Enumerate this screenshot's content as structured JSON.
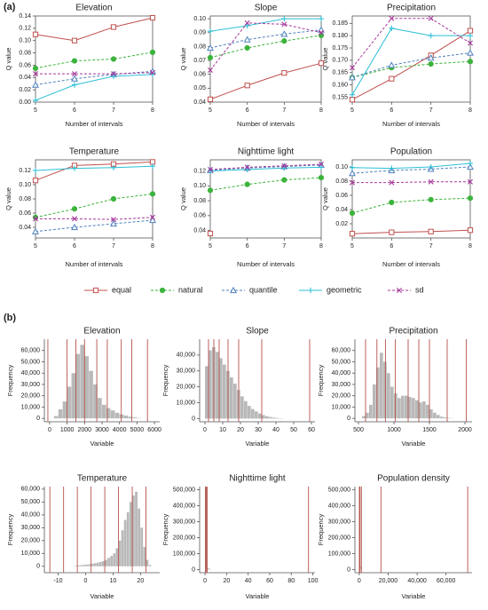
{
  "panels": [
    "(a)",
    "(b)"
  ],
  "chart_data": [
    {
      "type": "line",
      "title": "Elevation",
      "xlabel": "Number of intervals",
      "ylabel": "Q value",
      "x": [
        5,
        6,
        7,
        8
      ],
      "xlim": [
        5,
        8
      ],
      "xticks": [
        5,
        6,
        7,
        8
      ],
      "ylim": [
        0,
        0.14
      ],
      "yticks": [
        {
          "value": 0,
          "label": "0.00"
        },
        0.02,
        0.04,
        0.06,
        0.08,
        {
          "value": 0.1,
          "label": "0.10"
        },
        0.12,
        0.14
      ],
      "series": [
        {
          "name": "equal",
          "color": "#c0504d",
          "marker": "square",
          "dashed": false,
          "values": [
            0.11,
            0.1,
            0.122,
            0.137
          ]
        },
        {
          "name": "natural",
          "color": "#3cb33c",
          "marker": "circle",
          "dashed": true,
          "values": [
            0.055,
            0.067,
            0.07,
            0.081
          ]
        },
        {
          "name": "quantile",
          "color": "#4f81bd",
          "marker": "triangle",
          "dashed": true,
          "values": [
            0.028,
            0.038,
            0.045,
            0.05
          ]
        },
        {
          "name": "geometric",
          "color": "#2fbfd6",
          "marker": "plus",
          "dashed": false,
          "values": [
            0.003,
            0.028,
            0.042,
            0.045
          ]
        },
        {
          "name": "sd",
          "color": "#a8399a",
          "marker": "cross",
          "dashed": true,
          "values": [
            0.046,
            0.046,
            0.046,
            0.048
          ]
        }
      ]
    },
    {
      "type": "line",
      "title": "Slope",
      "xlabel": "Number of intervals",
      "ylabel": "Q value",
      "x": [
        5,
        6,
        7,
        8
      ],
      "xlim": [
        5,
        8
      ],
      "xticks": [
        5,
        6,
        7,
        8
      ],
      "ylim": [
        0.04,
        0.102
      ],
      "yticks": [
        0.04,
        0.05,
        0.06,
        0.07,
        0.08,
        0.09,
        {
          "value": 0.1,
          "label": "0.10"
        }
      ],
      "series": [
        {
          "name": "equal",
          "color": "#c0504d",
          "marker": "square",
          "dashed": false,
          "values": [
            0.042,
            0.052,
            0.061,
            0.068
          ]
        },
        {
          "name": "natural",
          "color": "#3cb33c",
          "marker": "circle",
          "dashed": true,
          "values": [
            0.072,
            0.079,
            0.084,
            0.088
          ]
        },
        {
          "name": "quantile",
          "color": "#4f81bd",
          "marker": "triangle",
          "dashed": true,
          "values": [
            0.079,
            0.085,
            0.089,
            0.092
          ]
        },
        {
          "name": "geometric",
          "color": "#2fbfd6",
          "marker": "plus",
          "dashed": false,
          "values": [
            0.091,
            0.095,
            0.1,
            0.1
          ]
        },
        {
          "name": "sd",
          "color": "#a8399a",
          "marker": "cross",
          "dashed": true,
          "values": [
            0.063,
            0.097,
            0.096,
            0.09
          ]
        }
      ]
    },
    {
      "type": "line",
      "title": "Precipitation",
      "xlabel": "Number of intervals",
      "ylabel": "Q value",
      "x": [
        5,
        6,
        7,
        8
      ],
      "xlim": [
        5,
        8
      ],
      "xticks": [
        5,
        6,
        7,
        8
      ],
      "ylim": [
        0.153,
        0.188
      ],
      "yticks": [
        0.155,
        {
          "value": 0.16,
          "label": "0.160"
        },
        0.165,
        {
          "value": 0.17,
          "label": "0.170"
        },
        0.175,
        {
          "value": 0.18,
          "label": "0.180"
        },
        0.185
      ],
      "series": [
        {
          "name": "equal",
          "color": "#c0504d",
          "marker": "square",
          "dashed": false,
          "values": [
            0.154,
            0.1625,
            0.172,
            0.182
          ]
        },
        {
          "name": "natural",
          "color": "#3cb33c",
          "marker": "circle",
          "dashed": true,
          "values": [
            0.163,
            0.167,
            0.1685,
            0.1695
          ]
        },
        {
          "name": "quantile",
          "color": "#4f81bd",
          "marker": "triangle",
          "dashed": true,
          "values": [
            0.163,
            0.168,
            0.171,
            0.173
          ]
        },
        {
          "name": "geometric",
          "color": "#2fbfd6",
          "marker": "plus",
          "dashed": false,
          "values": [
            0.156,
            0.183,
            0.18,
            0.18
          ]
        },
        {
          "name": "sd",
          "color": "#a8399a",
          "marker": "cross",
          "dashed": true,
          "values": [
            0.167,
            0.187,
            0.187,
            0.177
          ]
        }
      ]
    },
    {
      "type": "line",
      "title": "Temperature",
      "xlabel": "Number of intervals",
      "ylabel": "Q value",
      "x": [
        5,
        6,
        7,
        8
      ],
      "xlim": [
        5,
        8
      ],
      "xticks": [
        5,
        6,
        7,
        8
      ],
      "ylim": [
        0.025,
        0.135
      ],
      "yticks": [
        0.04,
        0.06,
        0.08,
        {
          "value": 0.1,
          "label": "0.10"
        },
        0.12
      ],
      "series": [
        {
          "name": "equal",
          "color": "#c0504d",
          "marker": "square",
          "dashed": false,
          "values": [
            0.106,
            0.127,
            0.129,
            0.132
          ]
        },
        {
          "name": "natural",
          "color": "#3cb33c",
          "marker": "circle",
          "dashed": true,
          "values": [
            0.054,
            0.066,
            0.08,
            0.087
          ]
        },
        {
          "name": "quantile",
          "color": "#4f81bd",
          "marker": "triangle",
          "dashed": true,
          "values": [
            0.034,
            0.04,
            0.045,
            0.05
          ]
        },
        {
          "name": "geometric",
          "color": "#2fbfd6",
          "marker": "plus",
          "dashed": false,
          "values": [
            0.12,
            0.123,
            0.124,
            0.126
          ]
        },
        {
          "name": "sd",
          "color": "#a8399a",
          "marker": "cross",
          "dashed": true,
          "values": [
            0.052,
            0.052,
            0.051,
            0.054
          ]
        }
      ]
    },
    {
      "type": "line",
      "title": "Nighttime light",
      "xlabel": "Number of intervals",
      "ylabel": "Q value",
      "x": [
        5,
        6,
        7,
        8
      ],
      "xlim": [
        5,
        8
      ],
      "xticks": [
        5,
        6,
        7,
        8
      ],
      "ylim": [
        0.03,
        0.135
      ],
      "yticks": [
        0.04,
        0.06,
        0.08,
        {
          "value": 0.1,
          "label": "0.10"
        },
        0.12
      ],
      "series": [
        {
          "name": "equal",
          "color": "#c0504d",
          "marker": "square",
          "dashed": false,
          "values": [
            0.036,
            null,
            null,
            null
          ]
        },
        {
          "name": "natural",
          "color": "#3cb33c",
          "marker": "circle",
          "dashed": true,
          "values": [
            0.094,
            0.102,
            0.108,
            0.111
          ]
        },
        {
          "name": "quantile",
          "color": "#4f81bd",
          "marker": "triangle",
          "dashed": true,
          "values": [
            0.121,
            0.124,
            0.126,
            0.128
          ]
        },
        {
          "name": "geometric",
          "color": "#2fbfd6",
          "marker": "plus",
          "dashed": false,
          "values": [
            0.12,
            0.122,
            0.124,
            0.125
          ]
        },
        {
          "name": "sd",
          "color": "#a8399a",
          "marker": "cross",
          "dashed": true,
          "values": [
            0.122,
            0.125,
            0.127,
            0.129
          ]
        }
      ]
    },
    {
      "type": "line",
      "title": "Population",
      "xlabel": "Number of intervals",
      "ylabel": "Q value",
      "x": [
        5,
        6,
        7,
        8
      ],
      "xlim": [
        5,
        8
      ],
      "xticks": [
        5,
        6,
        7,
        8
      ],
      "ylim": [
        0,
        0.11
      ],
      "yticks": [
        0.02,
        0.04,
        0.06,
        0.08,
        {
          "value": 0.1,
          "label": "0.10"
        }
      ],
      "series": [
        {
          "name": "equal",
          "color": "#c0504d",
          "marker": "square",
          "dashed": false,
          "values": [
            0.006,
            0.008,
            0.009,
            0.011
          ]
        },
        {
          "name": "natural",
          "color": "#3cb33c",
          "marker": "circle",
          "dashed": true,
          "values": [
            0.035,
            0.05,
            0.054,
            0.056
          ]
        },
        {
          "name": "quantile",
          "color": "#4f81bd",
          "marker": "triangle",
          "dashed": true,
          "values": [
            0.091,
            0.095,
            0.097,
            0.1
          ]
        },
        {
          "name": "geometric",
          "color": "#2fbfd6",
          "marker": "plus",
          "dashed": false,
          "values": [
            0.099,
            0.098,
            0.1,
            0.105
          ]
        },
        {
          "name": "sd",
          "color": "#a8399a",
          "marker": "cross",
          "dashed": true,
          "values": [
            0.078,
            0.078,
            0.079,
            0.079
          ]
        }
      ]
    },
    {
      "type": "histogram",
      "title": "Elevation",
      "xlabel": "Variable",
      "ylabel": "Frequency",
      "color": "#b9b9b9",
      "break_color": "#b5524a",
      "bins": [
        250,
        500,
        750,
        1000,
        1250,
        1500,
        1750,
        2000,
        2250,
        2500,
        2750,
        3000,
        3250,
        3500,
        3750,
        4000,
        4250,
        4500,
        4750,
        5000,
        5250
      ],
      "values": [
        2000,
        8000,
        15000,
        28000,
        40000,
        57000,
        65000,
        55000,
        42000,
        30000,
        18000,
        12000,
        9000,
        7000,
        5000,
        3500,
        2500,
        1500,
        800,
        300
      ],
      "breaks": [
        -100,
        1000,
        1500,
        2000,
        2700,
        3300,
        4100,
        4700,
        5600
      ],
      "xlim": [
        -300,
        6300
      ],
      "xticks": [
        0,
        1000,
        2000,
        3000,
        4000,
        5000,
        6000
      ],
      "ylim": [
        -3000,
        70000
      ],
      "yticks": [
        0,
        {
          "value": 10000,
          "label": "10,000"
        },
        {
          "value": 20000,
          "label": "20,000"
        },
        {
          "value": 30000,
          "label": "30,000"
        },
        {
          "value": 40000,
          "label": "40,000"
        },
        {
          "value": 50000,
          "label": "50,000"
        },
        {
          "value": 60000,
          "label": "60,000"
        }
      ]
    },
    {
      "type": "histogram",
      "title": "Slope",
      "xlabel": "Variable",
      "ylabel": "Frequency",
      "color": "#b9b9b9",
      "break_color": "#b5524a",
      "bins": [
        0,
        2,
        4,
        6,
        8,
        10,
        12,
        14,
        16,
        18,
        20,
        22,
        24,
        26,
        28,
        30,
        32,
        34,
        36,
        38,
        40,
        42,
        44
      ],
      "values": [
        33000,
        43000,
        45000,
        42000,
        38000,
        34000,
        30000,
        26000,
        22000,
        18000,
        14000,
        11000,
        8000,
        6000,
        4500,
        3200,
        2200,
        1500,
        1000,
        600,
        350,
        200
      ],
      "breaks": [
        2,
        5,
        8,
        13,
        19,
        32,
        59
      ],
      "xlim": [
        -3,
        62
      ],
      "xticks": [
        0,
        10,
        20,
        30,
        40,
        50,
        60
      ],
      "ylim": [
        -2000,
        50000
      ],
      "yticks": [
        0,
        {
          "value": 10000,
          "label": "10,000"
        },
        {
          "value": 20000,
          "label": "20,000"
        },
        {
          "value": 30000,
          "label": "30,000"
        },
        {
          "value": 40000,
          "label": "40,000"
        }
      ]
    },
    {
      "type": "histogram",
      "title": "Precipitation",
      "xlabel": "Variable",
      "ylabel": "Frequency",
      "color": "#b9b9b9",
      "break_color": "#b5524a",
      "bins": [
        550,
        600,
        650,
        700,
        750,
        800,
        850,
        900,
        950,
        1000,
        1050,
        1100,
        1150,
        1200,
        1250,
        1300,
        1350,
        1400,
        1450,
        1500,
        1550,
        1600,
        1650,
        1700,
        1750,
        1800,
        1850
      ],
      "values": [
        2000,
        5000,
        12000,
        30000,
        45000,
        58000,
        50000,
        40000,
        28000,
        22000,
        18000,
        20000,
        20000,
        19000,
        18000,
        16000,
        14000,
        15000,
        12000,
        8000,
        5000,
        3000,
        1500,
        800,
        400,
        200
      ],
      "breaks": [
        600,
        760,
        880,
        1020,
        1200,
        1350,
        1500,
        1750,
        2020
      ],
      "xlim": [
        450,
        2100
      ],
      "xticks": [
        500,
        1000,
        1500,
        2000
      ],
      "ylim": [
        -3000,
        70000
      ],
      "yticks": [
        0,
        {
          "value": 10000,
          "label": "10,000"
        },
        {
          "value": 20000,
          "label": "20,000"
        },
        {
          "value": 30000,
          "label": "30,000"
        },
        {
          "value": 40000,
          "label": "40,000"
        },
        {
          "value": 50000,
          "label": "50,000"
        },
        {
          "value": 60000,
          "label": "60,000"
        }
      ]
    },
    {
      "type": "histogram",
      "title": "Temperature",
      "xlabel": "Variable",
      "ylabel": "Frequency",
      "color": "#b9b9b9",
      "break_color": "#b5524a",
      "bins": [
        -4,
        -3,
        -2,
        -1,
        0,
        1,
        2,
        3,
        4,
        5,
        6,
        7,
        8,
        9,
        10,
        11,
        12,
        13,
        14,
        15,
        16,
        17,
        18,
        19,
        20,
        21,
        22,
        23,
        24
      ],
      "values": [
        500,
        700,
        900,
        1100,
        1300,
        1600,
        2000,
        2400,
        2800,
        3300,
        4000,
        5000,
        6500,
        8000,
        10000,
        14000,
        20000,
        28000,
        36000,
        42000,
        50000,
        55000,
        58000,
        45000,
        30000,
        15000,
        5000,
        1000
      ],
      "breaks": [
        -13,
        -8,
        -3,
        2,
        7,
        12,
        17,
        22
      ],
      "xlim": [
        -15,
        27
      ],
      "xticks": [
        -10,
        0,
        10,
        20
      ],
      "ylim": [
        -5000,
        62000
      ],
      "yticks": [
        0,
        {
          "value": 10000,
          "label": "10,000"
        },
        {
          "value": 20000,
          "label": "20,000"
        },
        {
          "value": 30000,
          "label": "30,000"
        },
        {
          "value": 40000,
          "label": "40,000"
        },
        {
          "value": 50000,
          "label": "50,000"
        },
        {
          "value": 60000,
          "label": "60,000"
        }
      ]
    },
    {
      "type": "histogram",
      "title": "Nighttime light",
      "xlabel": "Variable",
      "ylabel": "Frequency",
      "color": "#b9b9b9",
      "break_color": "#b5524a",
      "bins": [
        0,
        2,
        4,
        6
      ],
      "values": [
        510000,
        10000,
        3000
      ],
      "breaks": [
        0.3,
        1,
        2,
        96
      ],
      "xlim": [
        -5,
        102
      ],
      "xticks": [
        0,
        20,
        40,
        60,
        80,
        100
      ],
      "ylim": [
        -20000,
        520000
      ],
      "yticks": [
        0,
        {
          "value": 100000,
          "label": "100,000"
        },
        {
          "value": 200000,
          "label": "200,000"
        },
        {
          "value": 300000,
          "label": "300,000"
        },
        {
          "value": 400000,
          "label": "400,000"
        },
        {
          "value": 500000,
          "label": "500,000"
        }
      ]
    },
    {
      "type": "histogram",
      "title": "Population density",
      "xlabel": "Variable",
      "ylabel": "Frequency",
      "color": "#b9b9b9",
      "break_color": "#b5524a",
      "bins": [
        0,
        1000,
        2000
      ],
      "values": [
        500000,
        20000
      ],
      "breaks": [
        100,
        500,
        1500,
        15000,
        75000
      ],
      "xlim": [
        -3000,
        78000
      ],
      "xticks": [
        0,
        {
          "value": 20000,
          "label": "20,000"
        },
        {
          "value": 40000,
          "label": "40,000"
        },
        {
          "value": 60000,
          "label": "60,000"
        }
      ],
      "ylim": [
        -20000,
        520000
      ],
      "yticks": [
        0,
        {
          "value": 100000,
          "label": "100,000"
        },
        {
          "value": 200000,
          "label": "200,000"
        },
        {
          "value": 300000,
          "label": "300,000"
        },
        {
          "value": 400000,
          "label": "400,000"
        },
        {
          "value": 500000,
          "label": "500,000"
        }
      ]
    }
  ]
}
